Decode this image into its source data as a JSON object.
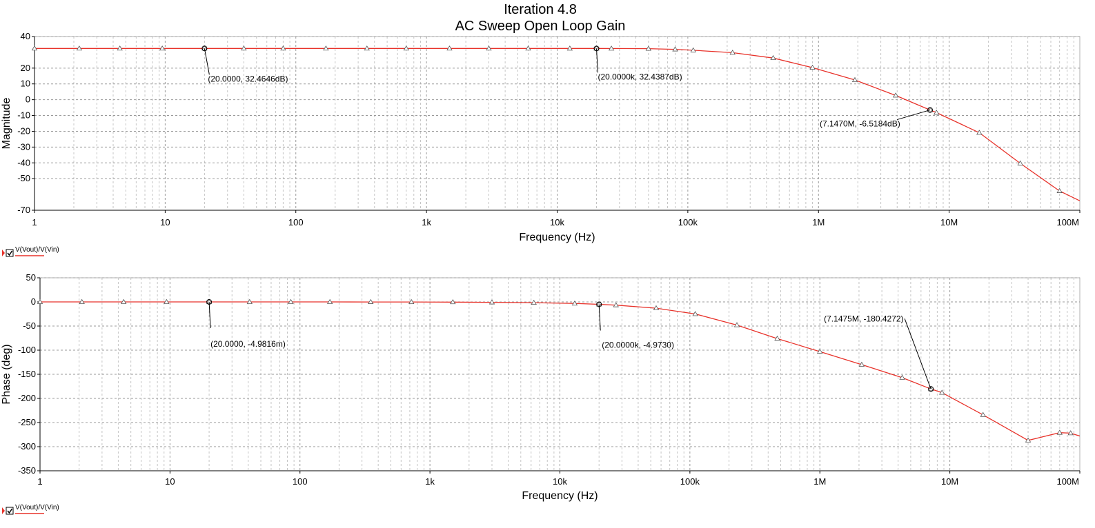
{
  "chart_data": [
    {
      "type": "line",
      "title": "Iteration 4.8",
      "subtitle": "AC Sweep Open Loop Gain",
      "xlabel": "Frequency (Hz)",
      "ylabel": "Magnitude",
      "xscale": "log",
      "xlim": [
        1,
        100000000
      ],
      "ylim": [
        -70,
        40
      ],
      "grid": true,
      "xticks": [
        {
          "value": 1,
          "label": "1"
        },
        {
          "value": 10,
          "label": "10"
        },
        {
          "value": 100,
          "label": "100"
        },
        {
          "value": 1000,
          "label": "1k"
        },
        {
          "value": 10000,
          "label": "10k"
        },
        {
          "value": 100000,
          "label": "100k"
        },
        {
          "value": 1000000,
          "label": "1M"
        },
        {
          "value": 10000000,
          "label": "10M"
        },
        {
          "value": 100000000,
          "label": "100M"
        }
      ],
      "yticks": [
        {
          "value": 40,
          "label": "40"
        },
        {
          "value": 20,
          "label": "20"
        },
        {
          "value": 10,
          "label": "10"
        },
        {
          "value": 0,
          "label": "0"
        },
        {
          "value": -10,
          "label": "-10"
        },
        {
          "value": -20,
          "label": "-20"
        },
        {
          "value": -30,
          "label": "-30"
        },
        {
          "value": -40,
          "label": "-40"
        },
        {
          "value": -50,
          "label": "-50"
        },
        {
          "value": -70,
          "label": "-70"
        }
      ],
      "series": [
        {
          "name": "V(Vout)/V(Vin)",
          "color": "#e8322a",
          "x": [
            1,
            2.2,
            4.5,
            9.5,
            20,
            40,
            80,
            170,
            350,
            700,
            1500,
            3000,
            6000,
            12500,
            20000,
            26000,
            50000,
            80000,
            110000,
            220000,
            450000,
            900000,
            1900000,
            3900000,
            7147000,
            8000000,
            17000000,
            35000000,
            70000000,
            100000000
          ],
          "y": [
            32.46,
            32.46,
            32.46,
            32.46,
            32.46,
            32.46,
            32.46,
            32.46,
            32.46,
            32.46,
            32.46,
            32.46,
            32.46,
            32.45,
            32.44,
            32.4,
            32.3,
            31.9,
            31.3,
            29.8,
            26.4,
            20.3,
            12.5,
            2.7,
            -6.52,
            -8.2,
            -20.9,
            -40.3,
            -57.8,
            -64
          ]
        }
      ],
      "markers": [
        {
          "x": 20,
          "y": 32.4646,
          "label": "(20.0000, 32.4646dB)"
        },
        {
          "x": 20000,
          "y": 32.4387,
          "label": "(20.0000k, 32.4387dB)"
        },
        {
          "x": 7147000,
          "y": -6.5184,
          "label": "(7.1470M, -6.5184dB)"
        }
      ],
      "legend": {
        "label": "V(Vout)/V(Vin)",
        "placement": "bottom-left"
      }
    },
    {
      "type": "line",
      "xlabel": "Frequency (Hz)",
      "ylabel": "Phase (deg)",
      "xscale": "log",
      "xlim": [
        1,
        100000000
      ],
      "ylim": [
        -350,
        50
      ],
      "grid": true,
      "xticks": [
        {
          "value": 1,
          "label": "1"
        },
        {
          "value": 10,
          "label": "10"
        },
        {
          "value": 100,
          "label": "100"
        },
        {
          "value": 1000,
          "label": "1k"
        },
        {
          "value": 10000,
          "label": "10k"
        },
        {
          "value": 100000,
          "label": "100k"
        },
        {
          "value": 1000000,
          "label": "1M"
        },
        {
          "value": 10000000,
          "label": "10M"
        },
        {
          "value": 100000000,
          "label": "100M"
        }
      ],
      "yticks": [
        {
          "value": 50,
          "label": "50"
        },
        {
          "value": 0,
          "label": "0"
        },
        {
          "value": -50,
          "label": "-50"
        },
        {
          "value": -100,
          "label": "-100"
        },
        {
          "value": -150,
          "label": "-150"
        },
        {
          "value": -200,
          "label": "-200"
        },
        {
          "value": -250,
          "label": "-250"
        },
        {
          "value": -300,
          "label": "-300"
        },
        {
          "value": -350,
          "label": "-350"
        }
      ],
      "series": [
        {
          "name": "V(Vout)/V(Vin)",
          "color": "#e8322a",
          "x": [
            1,
            2.1,
            4.4,
            9.4,
            20,
            41,
            85,
            170,
            350,
            720,
            1500,
            3000,
            6300,
            13000,
            20000,
            27000,
            55000,
            110000,
            230000,
            470000,
            1000000,
            2100000,
            4300000,
            7147500,
            8700000,
            18000000,
            40000000,
            70000000,
            85000000,
            100000000
          ],
          "y": [
            0,
            0,
            0,
            0,
            -0.005,
            -0.01,
            -0.02,
            -0.04,
            -0.1,
            -0.2,
            -0.4,
            -0.8,
            -1.6,
            -3.2,
            -4.97,
            -6.7,
            -13,
            -25,
            -48,
            -76,
            -103,
            -130,
            -157,
            -180.43,
            -188,
            -234,
            -287,
            -271,
            -272,
            -278
          ]
        }
      ],
      "markers": [
        {
          "x": 20,
          "y": -0.0049816,
          "label": "(20.0000, -4.9816m)"
        },
        {
          "x": 20000,
          "y": -4.973,
          "label": "(20.0000k, -4.9730)"
        },
        {
          "x": 7147500,
          "y": -180.4272,
          "label": "(7.1475M, -180.4272)"
        }
      ],
      "legend": {
        "label": "V(Vout)/V(Vin)",
        "placement": "bottom-left"
      }
    }
  ]
}
